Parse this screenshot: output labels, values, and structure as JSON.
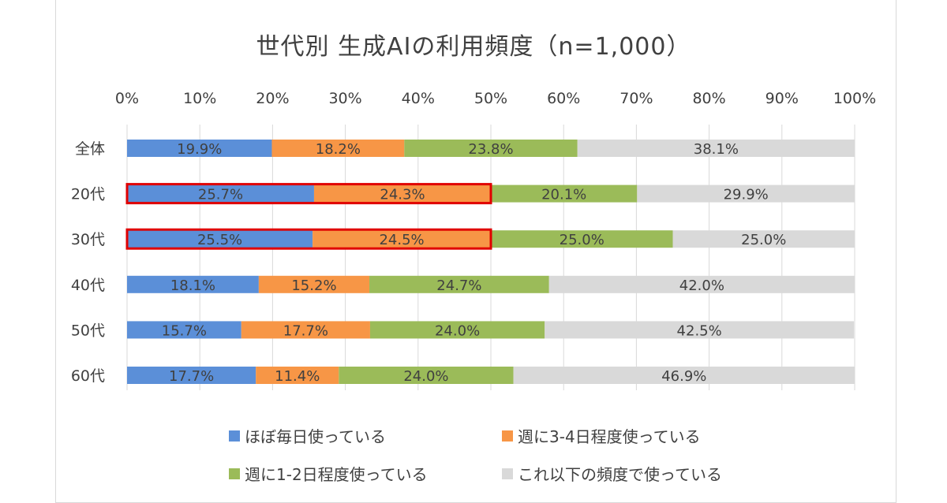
{
  "chart_data": {
    "type": "bar",
    "orientation": "horizontal",
    "stacked": "100%",
    "title": "世代別 生成AIの利用頻度（n=1,000）",
    "categories": [
      "全体",
      "20代",
      "30代",
      "40代",
      "50代",
      "60代"
    ],
    "x_ticks": [
      "0%",
      "10%",
      "20%",
      "30%",
      "40%",
      "50%",
      "60%",
      "70%",
      "80%",
      "90%",
      "100%"
    ],
    "xlim": [
      0,
      100
    ],
    "grid": true,
    "legend_position": "bottom",
    "series": [
      {
        "name": "ほぼ毎日使っている",
        "color": "#5b8fd8",
        "values": [
          19.9,
          25.7,
          25.5,
          18.1,
          15.7,
          17.7
        ],
        "labels": [
          "19.9%",
          "25.7%",
          "25.5%",
          "18.1%",
          "15.7%",
          "17.7%"
        ]
      },
      {
        "name": "週に3-4日程度使っている",
        "color": "#f79646",
        "values": [
          18.2,
          24.3,
          24.5,
          15.2,
          17.7,
          11.4
        ],
        "labels": [
          "18.2%",
          "24.3%",
          "24.5%",
          "15.2%",
          "17.7%",
          "11.4%"
        ]
      },
      {
        "name": "週に1-2日程度使っている",
        "color": "#9bbb59",
        "values": [
          23.8,
          20.1,
          25.0,
          24.7,
          24.0,
          24.0
        ],
        "labels": [
          "23.8%",
          "20.1%",
          "25.0%",
          "24.7%",
          "24.0%",
          "24.0%"
        ]
      },
      {
        "name": "これ以下の頻度で使っている",
        "color": "#d9d9d9",
        "values": [
          38.1,
          29.9,
          25.0,
          42.0,
          42.5,
          46.9
        ],
        "labels": [
          "38.1%",
          "29.9%",
          "25.0%",
          "42.0%",
          "42.5%",
          "46.9%"
        ]
      }
    ],
    "highlight": {
      "categories": [
        "20代",
        "30代"
      ],
      "series": [
        0,
        1
      ],
      "color": "#e00000"
    }
  }
}
